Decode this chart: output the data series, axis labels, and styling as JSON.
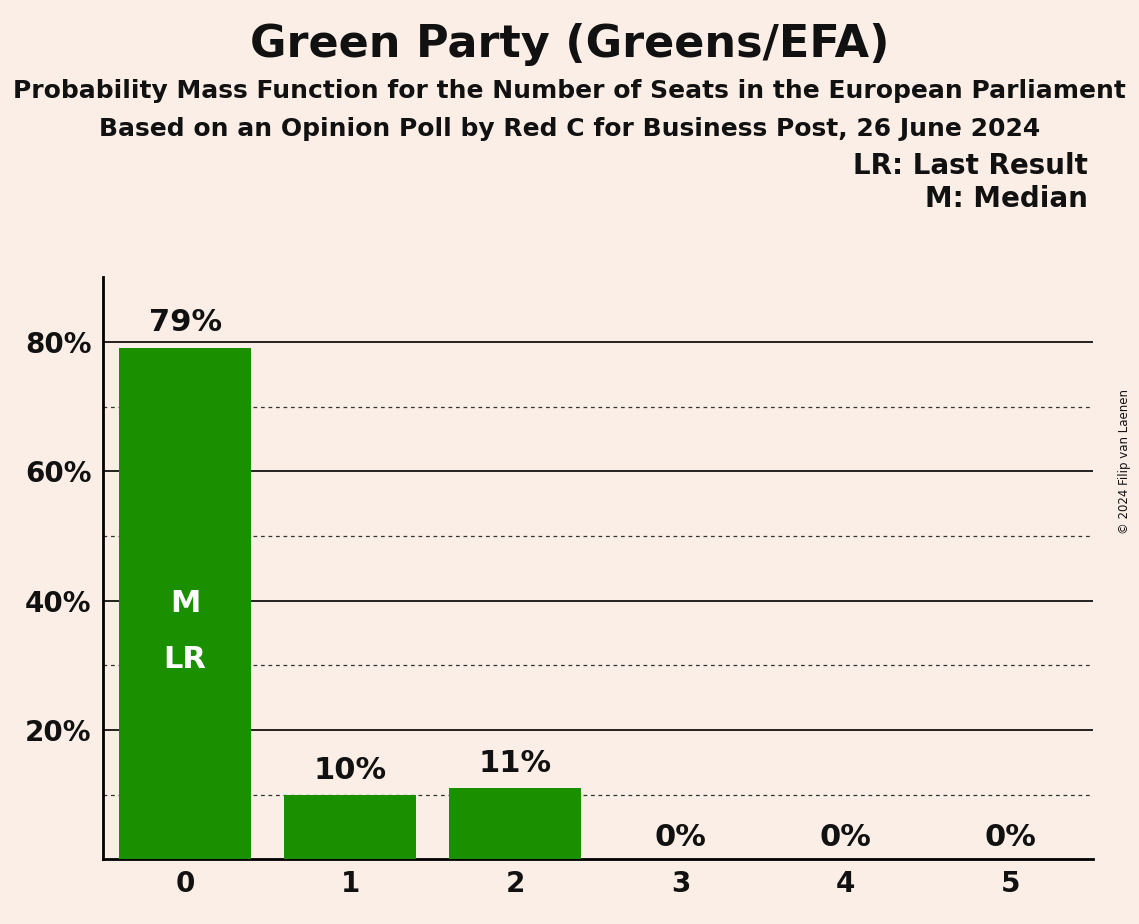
{
  "title": "Green Party (Greens/EFA)",
  "subtitle1": "Probability Mass Function for the Number of Seats in the European Parliament",
  "subtitle2": "Based on an Opinion Poll by Red C for Business Post, 26 June 2024",
  "copyright": "© 2024 Filip van Laenen",
  "categories": [
    0,
    1,
    2,
    3,
    4,
    5
  ],
  "values": [
    0.79,
    0.1,
    0.11,
    0.0,
    0.0,
    0.0
  ],
  "bar_color": "#1a9000",
  "background_color": "#faeee6",
  "title_fontsize": 32,
  "subtitle_fontsize": 18,
  "label_fontsize": 20,
  "tick_fontsize": 20,
  "bar_label_fontsize": 22,
  "legend_text1": "LR: Last Result",
  "legend_text2": "M: Median",
  "median_seat": 0,
  "last_result_seat": 0,
  "bar_label_color_inside": "#ffffff",
  "bar_label_color_outside": "#111111",
  "solid_grid_values": [
    0.2,
    0.4,
    0.6,
    0.8
  ],
  "dotted_grid_values": [
    0.1,
    0.3,
    0.5,
    0.7
  ],
  "xlim": [
    -0.5,
    5.5
  ],
  "ylim": [
    0,
    0.9
  ]
}
